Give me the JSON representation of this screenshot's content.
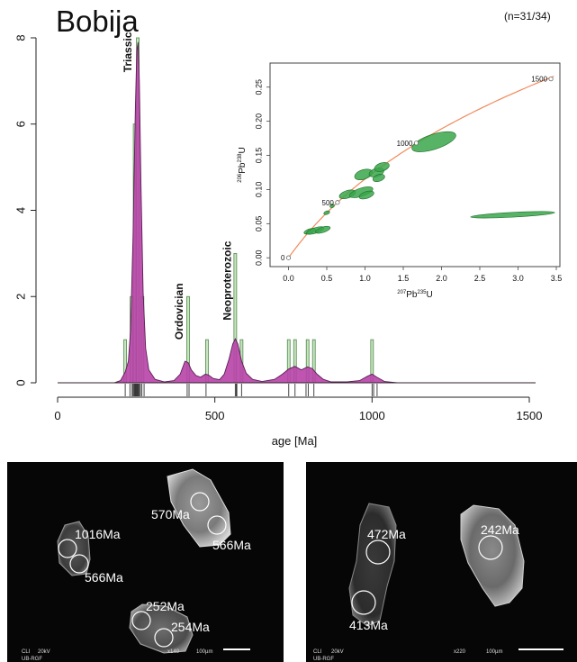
{
  "chart_data": {
    "type": "bar",
    "title": "Bobija",
    "sample_count": "(n=31/34)",
    "xlabel": "age [Ma]",
    "ylabel": "",
    "xlim": [
      0,
      1500
    ],
    "ylim": [
      0,
      8
    ],
    "x_ticks": [
      0,
      500,
      1000,
      1500
    ],
    "y_ticks": [
      0,
      2,
      4,
      6,
      8
    ],
    "histogram": {
      "bin_width": 20,
      "bins": [
        {
          "x": 215,
          "count": 1
        },
        {
          "x": 235,
          "count": 2
        },
        {
          "x": 245,
          "count": 6
        },
        {
          "x": 255,
          "count": 8
        },
        {
          "x": 270,
          "count": 2
        },
        {
          "x": 415,
          "count": 2
        },
        {
          "x": 475,
          "count": 1
        },
        {
          "x": 565,
          "count": 3
        },
        {
          "x": 585,
          "count": 1
        },
        {
          "x": 735,
          "count": 1
        },
        {
          "x": 755,
          "count": 1
        },
        {
          "x": 795,
          "count": 1
        },
        {
          "x": 815,
          "count": 1
        },
        {
          "x": 1000,
          "count": 1
        }
      ]
    },
    "kde": {
      "x": [
        0,
        180,
        200,
        215,
        225,
        232,
        240,
        247,
        252,
        256,
        260,
        265,
        272,
        280,
        290,
        310,
        340,
        370,
        390,
        405,
        415,
        425,
        440,
        455,
        470,
        480,
        495,
        515,
        530,
        545,
        557,
        565,
        573,
        585,
        600,
        620,
        650,
        690,
        715,
        735,
        755,
        775,
        795,
        810,
        825,
        845,
        870,
        920,
        960,
        985,
        1000,
        1015,
        1040,
        1080,
        1520
      ],
      "y": [
        0,
        0,
        0.05,
        0.25,
        0.5,
        1.2,
        3.4,
        6.3,
        7.7,
        7.9,
        7.0,
        4.6,
        2.1,
        0.8,
        0.3,
        0.08,
        0.02,
        0.05,
        0.2,
        0.5,
        0.47,
        0.3,
        0.17,
        0.13,
        0.2,
        0.18,
        0.1,
        0.07,
        0.2,
        0.55,
        0.9,
        1.02,
        0.9,
        0.5,
        0.22,
        0.08,
        0.03,
        0.08,
        0.2,
        0.32,
        0.38,
        0.3,
        0.37,
        0.33,
        0.2,
        0.08,
        0.02,
        0.02,
        0.05,
        0.15,
        0.2,
        0.13,
        0.03,
        0,
        0
      ]
    },
    "rug_ages": [
      215,
      230,
      237,
      240,
      243,
      245,
      247,
      249,
      251,
      253,
      255,
      257,
      260,
      263,
      268,
      275,
      412,
      418,
      472,
      565,
      568,
      570,
      585,
      735,
      755,
      790,
      797,
      815,
      1000,
      1005,
      1016
    ],
    "annotations": [
      {
        "text": "Triassic",
        "x": 252,
        "y": 7.2
      },
      {
        "text": "Ordovician",
        "x": 415,
        "y": 1.0
      },
      {
        "text": "Neoproterozoic",
        "x": 568,
        "y": 1.45
      }
    ],
    "concordia_inset": {
      "xlabel_base": "Pb",
      "xlabel_sup": "207",
      "xlabel_sub": "235",
      "xlabel_tail": "U",
      "ylabel_base": "Pb",
      "ylabel_sup": "206",
      "ylabel_sub": "238",
      "ylabel_tail": "U",
      "xlim": [
        -0.1,
        3.5
      ],
      "ylim": [
        -0.005,
        0.28
      ],
      "x_ticks": [
        "0.0",
        "0.5",
        "1.0",
        "1.5",
        "2.0",
        "2.5",
        "3.0",
        "3.5"
      ],
      "x_tick_values": [
        0,
        0.5,
        1,
        1.5,
        2,
        2.5,
        3,
        3.5
      ],
      "y_ticks": [
        "0.00",
        "0.05",
        "0.10",
        "0.15",
        "0.20",
        "0.25"
      ],
      "y_tick_values": [
        0,
        0.05,
        0.1,
        0.15,
        0.2,
        0.25
      ],
      "age_markers": [
        {
          "label": "0",
          "x": 0.0,
          "y": 0.0
        },
        {
          "label": "500",
          "x": 0.64,
          "y": 0.081
        },
        {
          "label": "1000",
          "x": 1.67,
          "y": 0.168
        },
        {
          "label": "1500",
          "x": 3.43,
          "y": 0.262
        }
      ],
      "ellipses": [
        {
          "x": 0.28,
          "y": 0.039,
          "rx": 0.08,
          "ry": 0.0035
        },
        {
          "x": 0.35,
          "y": 0.04,
          "rx": 0.12,
          "ry": 0.004
        },
        {
          "x": 0.45,
          "y": 0.041,
          "rx": 0.1,
          "ry": 0.004
        },
        {
          "x": 0.5,
          "y": 0.066,
          "rx": 0.04,
          "ry": 0.0025
        },
        {
          "x": 0.57,
          "y": 0.076,
          "rx": 0.03,
          "ry": 0.0025
        },
        {
          "x": 0.77,
          "y": 0.093,
          "rx": 0.11,
          "ry": 0.0055
        },
        {
          "x": 0.95,
          "y": 0.096,
          "rx": 0.16,
          "ry": 0.006
        },
        {
          "x": 1.02,
          "y": 0.092,
          "rx": 0.1,
          "ry": 0.005
        },
        {
          "x": 0.98,
          "y": 0.122,
          "rx": 0.12,
          "ry": 0.007
        },
        {
          "x": 1.15,
          "y": 0.125,
          "rx": 0.1,
          "ry": 0.006
        },
        {
          "x": 1.22,
          "y": 0.133,
          "rx": 0.1,
          "ry": 0.006
        },
        {
          "x": 1.18,
          "y": 0.117,
          "rx": 0.08,
          "ry": 0.005
        },
        {
          "x": 1.9,
          "y": 0.17,
          "rx": 0.3,
          "ry": 0.011
        },
        {
          "x": 2.93,
          "y": 0.063,
          "rx": 0.55,
          "ry": 0.0035
        }
      ]
    }
  },
  "cl_images": {
    "left": {
      "footer_mode": "CLI",
      "footer_kv": "20kV",
      "footer_lab": "UB-RGF",
      "footer_mag": "x140",
      "footer_scale": "100µm",
      "labels": [
        "1016Ma",
        "566Ma",
        "570Ma",
        "566Ma",
        "252Ma",
        "254Ma"
      ]
    },
    "right": {
      "footer_mode": "CLI",
      "footer_kv": "20kV",
      "footer_lab": "UB-RGF",
      "footer_mag": "x220",
      "footer_scale": "100µm",
      "labels": [
        "472Ma",
        "413Ma",
        "242Ma"
      ]
    }
  },
  "colors": {
    "kde_fill": "#b843a8",
    "kde_stroke": "#5a1e54",
    "hist_fill": "#c8e4c0",
    "hist_stroke": "#4e8a4a",
    "ellipse_fill": "#3aa64a",
    "ellipse_stroke": "#1f6e2a",
    "concordia_curve": "#f08a5a",
    "rug": "#333333"
  }
}
